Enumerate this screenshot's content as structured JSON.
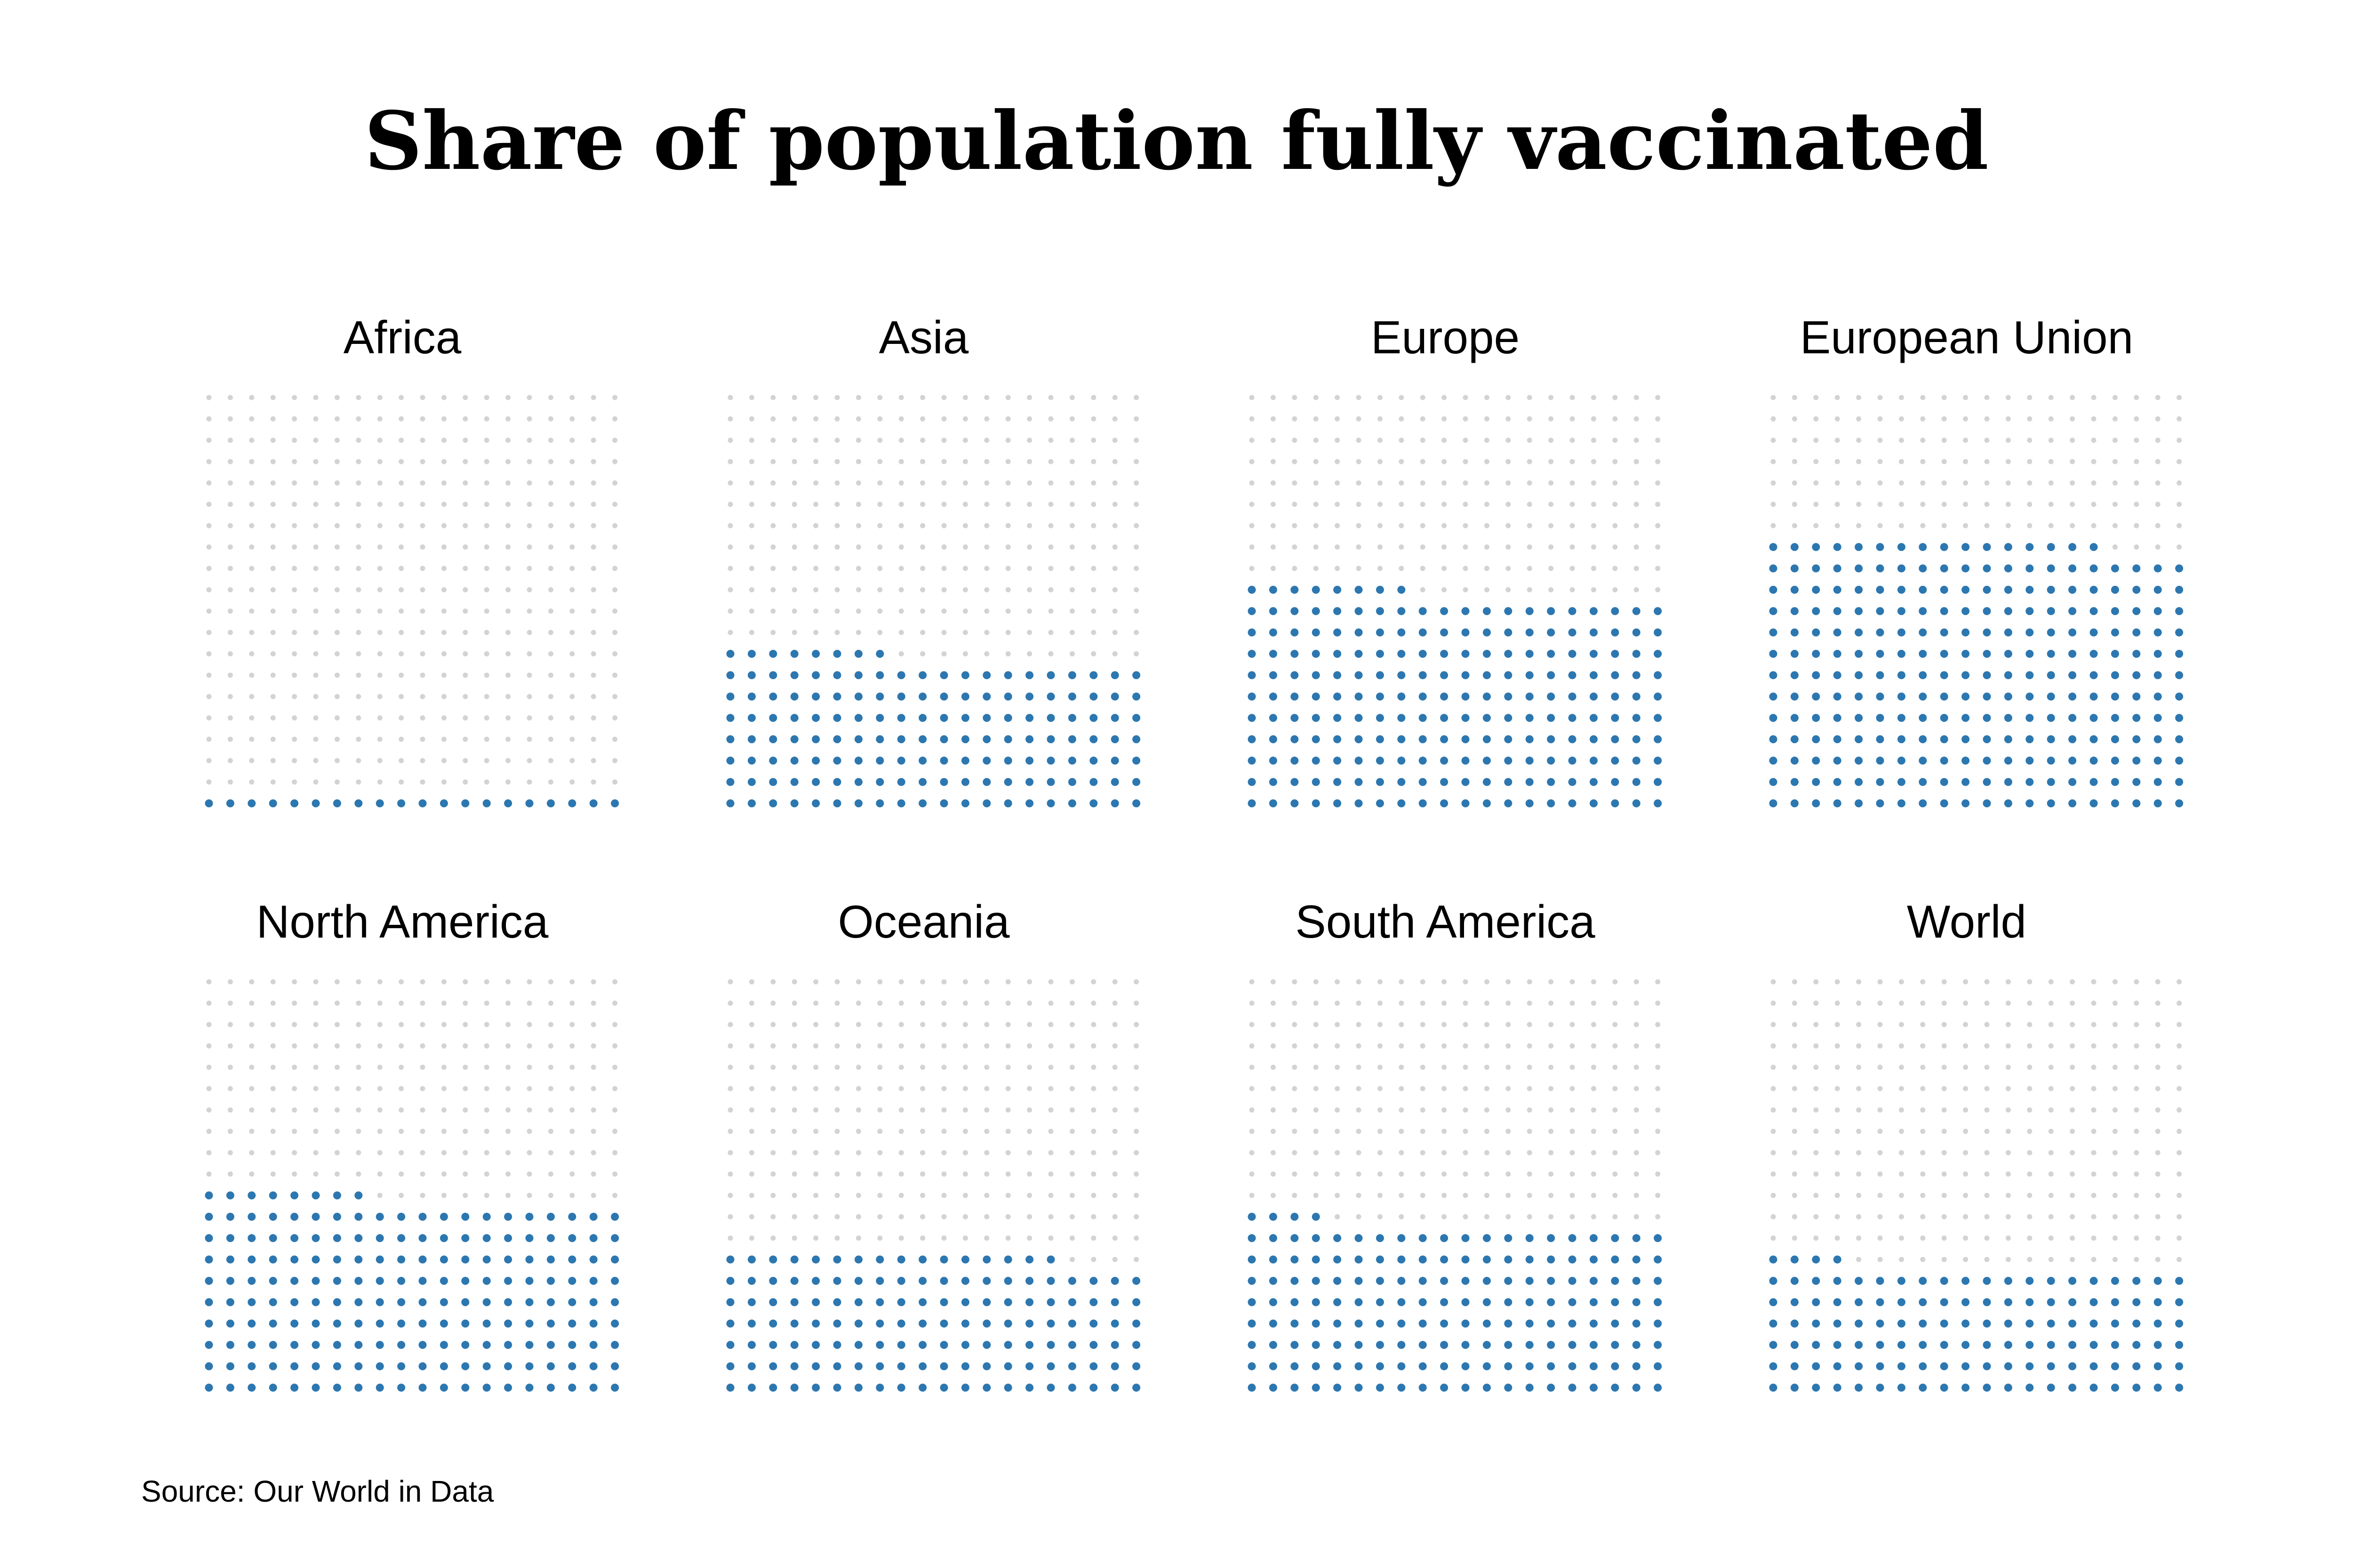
{
  "chart_data": {
    "type": "waffle",
    "title": "Share of population fully vaccinated",
    "source": "Source: Our World in Data",
    "unit": "percent",
    "colors": {
      "vaccinated": "#2c77b0",
      "remaining": "#d3d3d3"
    },
    "panels": [
      {
        "label": "Africa",
        "value": 5
      },
      {
        "label": "Asia",
        "value": 37
      },
      {
        "label": "Europe",
        "value": 52
      },
      {
        "label": "European Union",
        "value": 64
      },
      {
        "label": "North America",
        "value": 47
      },
      {
        "label": "Oceania",
        "value": 34
      },
      {
        "label": "South America",
        "value": 41
      },
      {
        "label": "World",
        "value": 31
      }
    ]
  }
}
